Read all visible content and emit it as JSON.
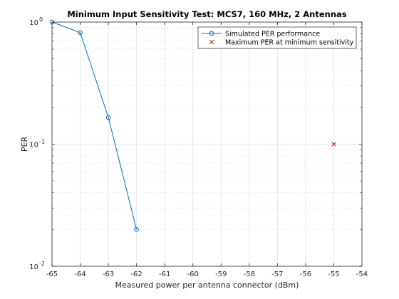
{
  "chart_data": {
    "type": "line",
    "title": "Minimum Input Sensitivity Test: MCS7, 160 MHz, 2 Antennas",
    "xlabel": "Measured power per antenna connector (dBm)",
    "ylabel": "PER",
    "xlim": [
      -65,
      -54
    ],
    "ylim": [
      0.01,
      1
    ],
    "yscale": "log",
    "x_ticks": [
      "-65",
      "-64",
      "-63",
      "-62",
      "-61",
      "-60",
      "-59",
      "-58",
      "-57",
      "-56",
      "-55",
      "-54"
    ],
    "y_ticks": [
      {
        "base": "10",
        "exp": "-2"
      },
      {
        "base": "10",
        "exp": "-1"
      },
      {
        "base": "10",
        "exp": "0"
      }
    ],
    "grid": true,
    "legend_position": "top-right",
    "series": [
      {
        "name": "Simulated PER performance",
        "color": "#0072BD",
        "marker": "circle",
        "x": [
          -65,
          -64,
          -63,
          -62
        ],
        "y": [
          1.0,
          0.82,
          0.165,
          0.02
        ]
      },
      {
        "name": "Maximum PER at minimum sensitivity",
        "color": "#cc0000",
        "marker": "x",
        "x": [
          -55
        ],
        "y": [
          0.1
        ]
      }
    ]
  }
}
